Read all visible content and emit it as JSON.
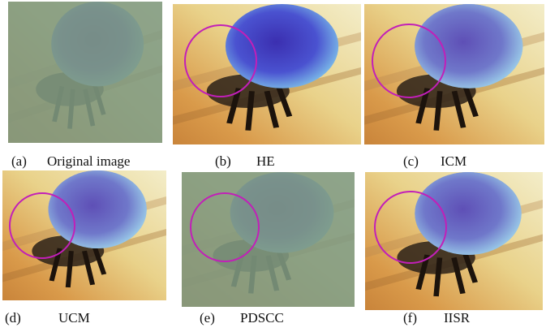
{
  "panels": [
    {
      "label": "(a)",
      "text": "Original image"
    },
    {
      "label": "(b)",
      "text": "HE"
    },
    {
      "label": "(c)",
      "text": "ICM"
    },
    {
      "label": "(d)",
      "text": "UCM"
    },
    {
      "label": "(e)",
      "text": "PDSCC"
    },
    {
      "label": "(f)",
      "text": "IISR"
    }
  ]
}
